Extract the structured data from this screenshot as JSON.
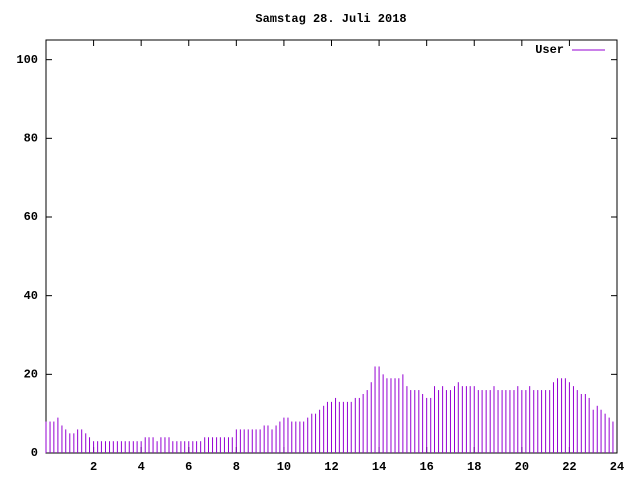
{
  "chart_data": {
    "type": "impulse",
    "title": "Samstag 28. Juli 2018",
    "xlim": [
      0,
      24
    ],
    "ylim": [
      0,
      105
    ],
    "xticks": [
      2,
      4,
      6,
      8,
      10,
      12,
      14,
      16,
      18,
      20,
      22,
      24
    ],
    "yticks": [
      0,
      20,
      40,
      60,
      80,
      100
    ],
    "x": [
      0,
      0.17,
      0.33,
      0.5,
      0.67,
      0.83,
      1,
      1.17,
      1.33,
      1.5,
      1.67,
      1.83,
      2,
      2.17,
      2.33,
      2.5,
      2.67,
      2.83,
      3,
      3.17,
      3.33,
      3.5,
      3.67,
      3.83,
      4,
      4.17,
      4.33,
      4.5,
      4.67,
      4.83,
      5,
      5.17,
      5.33,
      5.5,
      5.67,
      5.83,
      6,
      6.17,
      6.33,
      6.5,
      6.67,
      6.83,
      7,
      7.17,
      7.33,
      7.5,
      7.67,
      7.83,
      8,
      8.17,
      8.33,
      8.5,
      8.67,
      8.83,
      9,
      9.17,
      9.33,
      9.5,
      9.67,
      9.83,
      10,
      10.17,
      10.33,
      10.5,
      10.67,
      10.83,
      11,
      11.17,
      11.33,
      11.5,
      11.67,
      11.83,
      12,
      12.17,
      12.33,
      12.5,
      12.67,
      12.83,
      13,
      13.17,
      13.33,
      13.5,
      13.67,
      13.83,
      14,
      14.17,
      14.33,
      14.5,
      14.67,
      14.83,
      15,
      15.17,
      15.33,
      15.5,
      15.67,
      15.83,
      16,
      16.17,
      16.33,
      16.5,
      16.67,
      16.83,
      17,
      17.17,
      17.33,
      17.5,
      17.67,
      17.83,
      18,
      18.17,
      18.33,
      18.5,
      18.67,
      18.83,
      19,
      19.17,
      19.33,
      19.5,
      19.67,
      19.83,
      20,
      20.17,
      20.33,
      20.5,
      20.67,
      20.83,
      21,
      21.17,
      21.33,
      21.5,
      21.67,
      21.83,
      22,
      22.17,
      22.33,
      22.5,
      22.67,
      22.83,
      23,
      23.17,
      23.33,
      23.5,
      23.67,
      23.83
    ],
    "series": [
      {
        "name": "User",
        "color": "#9400d3",
        "values": [
          8,
          8,
          8,
          9,
          7,
          6,
          5,
          5,
          6,
          6,
          5,
          4,
          3,
          3,
          3,
          3,
          3,
          3,
          3,
          3,
          3,
          3,
          3,
          3,
          3,
          4,
          4,
          4,
          3,
          4,
          4,
          4,
          3,
          3,
          3,
          3,
          3,
          3,
          3,
          3,
          4,
          4,
          4,
          4,
          4,
          4,
          4,
          4,
          6,
          6,
          6,
          6,
          6,
          6,
          6,
          7,
          7,
          6,
          7,
          8,
          9,
          9,
          8,
          8,
          8,
          8,
          9,
          10,
          10,
          11,
          12,
          13,
          13,
          14,
          13,
          13,
          13,
          13,
          14,
          14,
          15,
          16,
          18,
          22,
          22,
          20,
          19,
          19,
          19,
          19,
          20,
          17,
          16,
          16,
          16,
          15,
          14,
          14,
          17,
          16,
          17,
          16,
          16,
          17,
          18,
          17,
          17,
          17,
          17,
          16,
          16,
          16,
          16,
          17,
          16,
          16,
          16,
          16,
          16,
          17,
          16,
          16,
          17,
          16,
          16,
          16,
          16,
          16,
          18,
          19,
          19,
          19,
          18,
          17,
          16,
          15,
          15,
          14,
          11,
          12,
          11,
          10,
          9,
          8
        ]
      }
    ]
  }
}
